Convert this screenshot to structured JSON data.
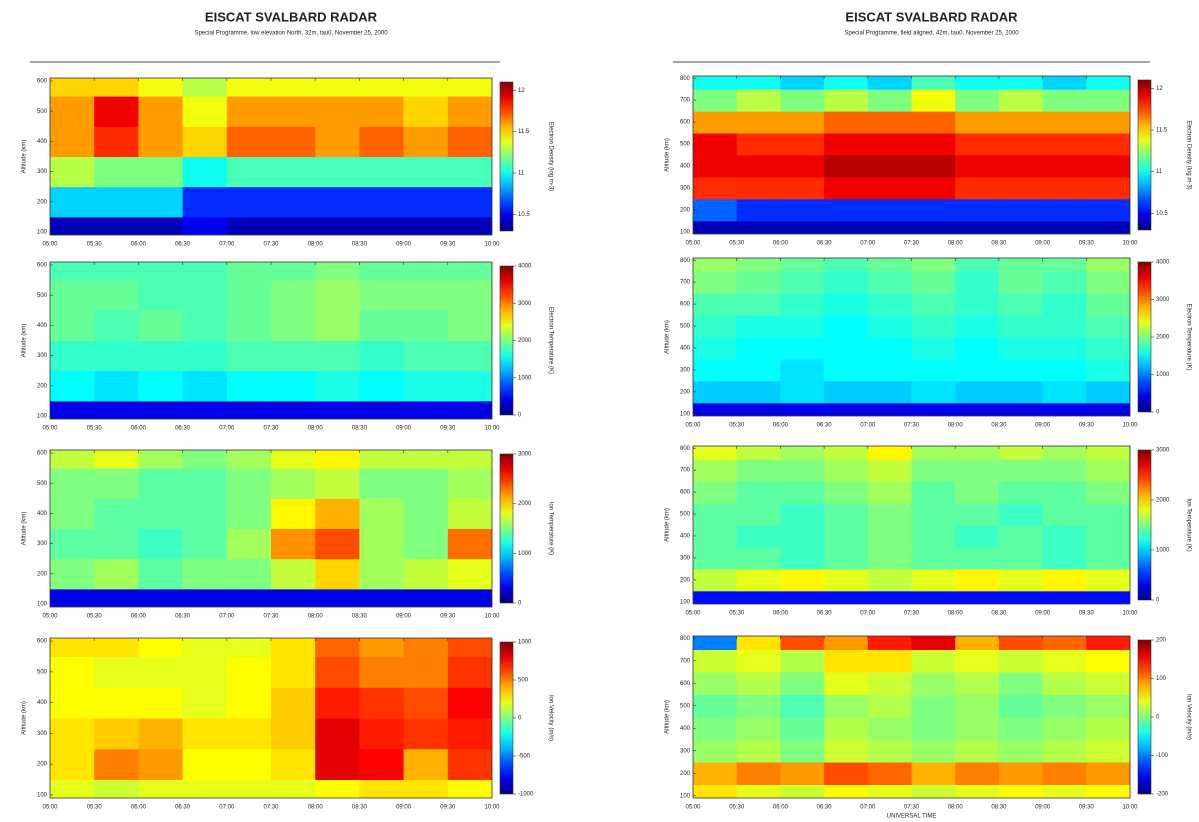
{
  "chart_data": [
    {
      "type": "heatmap",
      "title": "EISCAT SVALBARD RADAR",
      "subtitle": "Special Programme, low elevation North, 32m, tau0, November 25, 2000",
      "x": [
        "05:15",
        "05:45",
        "06:15",
        "06:45",
        "07:15",
        "07:45",
        "08:15",
        "08:45",
        "09:15",
        "09:45"
      ],
      "xlim": [
        "05:00",
        "10:00"
      ],
      "xticks": [
        "05:00",
        "05:30",
        "06:00",
        "06:30",
        "07:00",
        "07:30",
        "08:00",
        "08:30",
        "09:00",
        "09:30",
        "10:00"
      ],
      "y": [
        100,
        200,
        300,
        400,
        500,
        600
      ],
      "ylim": [
        90,
        610
      ],
      "yticks": [
        100,
        200,
        300,
        400,
        500,
        600
      ],
      "ylabel": "Altitude (km)",
      "values": [
        [
          10.4,
          10.4,
          10.4,
          10.5,
          10.4,
          10.4,
          10.4,
          10.4,
          10.4,
          10.4
        ],
        [
          10.9,
          10.9,
          10.9,
          10.6,
          10.6,
          10.6,
          10.6,
          10.6,
          10.6,
          10.6
        ],
        [
          11.3,
          11.2,
          11.2,
          11.0,
          11.1,
          11.1,
          11.1,
          11.1,
          11.1,
          11.1
        ],
        [
          11.6,
          11.8,
          11.6,
          11.5,
          11.7,
          11.7,
          11.6,
          11.7,
          11.6,
          11.7
        ],
        [
          11.6,
          11.9,
          11.6,
          11.4,
          11.6,
          11.6,
          11.6,
          11.6,
          11.5,
          11.6
        ],
        [
          11.5,
          11.5,
          11.4,
          11.3,
          11.4,
          11.4,
          11.4,
          11.4,
          11.4,
          11.4
        ]
      ],
      "clim": [
        10.3,
        12.1
      ],
      "cticks": [
        10.5,
        11,
        11.5,
        12
      ],
      "colorbar_label": "Electron Density (log m-3)"
    },
    {
      "type": "heatmap",
      "x": [
        "05:15",
        "05:45",
        "06:15",
        "06:45",
        "07:15",
        "07:45",
        "08:15",
        "08:45",
        "09:15",
        "09:45"
      ],
      "xlim": [
        "05:00",
        "10:00"
      ],
      "xticks": [
        "05:00",
        "05:30",
        "06:00",
        "06:30",
        "07:00",
        "07:30",
        "08:00",
        "08:30",
        "09:00",
        "09:30",
        "10:00"
      ],
      "y": [
        100,
        200,
        300,
        400,
        500,
        600
      ],
      "ylim": [
        90,
        610
      ],
      "yticks": [
        100,
        200,
        300,
        400,
        500,
        600
      ],
      "ylabel": "Altitude (km)",
      "values": [
        [
          400,
          400,
          400,
          400,
          400,
          400,
          400,
          400,
          400,
          400
        ],
        [
          1500,
          1400,
          1500,
          1400,
          1500,
          1500,
          1600,
          1500,
          1600,
          1600
        ],
        [
          1700,
          1700,
          1700,
          1700,
          1800,
          1800,
          1800,
          1700,
          1800,
          1800
        ],
        [
          1900,
          1800,
          1900,
          1800,
          1900,
          2000,
          2100,
          1900,
          1900,
          2000
        ],
        [
          1900,
          1900,
          1800,
          1800,
          1900,
          2000,
          2100,
          2000,
          2000,
          2000
        ],
        [
          1800,
          1800,
          1800,
          1800,
          1900,
          1900,
          2000,
          1900,
          1900,
          1900
        ]
      ],
      "clim": [
        0,
        4000
      ],
      "cticks": [
        0,
        1000,
        2000,
        3000,
        4000
      ],
      "colorbar_label": "Electron Temperature (K)"
    },
    {
      "type": "heatmap",
      "x": [
        "05:15",
        "05:45",
        "06:15",
        "06:45",
        "07:15",
        "07:45",
        "08:15",
        "08:45",
        "09:15",
        "09:45"
      ],
      "xlim": [
        "05:00",
        "10:00"
      ],
      "xticks": [
        "05:00",
        "05:30",
        "06:00",
        "06:30",
        "07:00",
        "07:30",
        "08:00",
        "08:30",
        "09:00",
        "09:30",
        "10:00"
      ],
      "y": [
        100,
        200,
        300,
        400,
        500,
        600
      ],
      "ylim": [
        90,
        610
      ],
      "yticks": [
        100,
        200,
        300,
        400,
        500,
        600
      ],
      "ylabel": "Altitude (km)",
      "values": [
        [
          300,
          300,
          300,
          300,
          300,
          300,
          300,
          300,
          300,
          300
        ],
        [
          1500,
          1600,
          1400,
          1500,
          1500,
          1700,
          2000,
          1600,
          1700,
          1800
        ],
        [
          1400,
          1400,
          1300,
          1400,
          1600,
          2200,
          2400,
          1600,
          1500,
          2300
        ],
        [
          1500,
          1400,
          1400,
          1400,
          1500,
          1900,
          2100,
          1600,
          1500,
          1700
        ],
        [
          1500,
          1500,
          1400,
          1400,
          1500,
          1600,
          1700,
          1500,
          1500,
          1600
        ],
        [
          1700,
          1800,
          1600,
          1500,
          1600,
          1800,
          1900,
          1700,
          1700,
          1700
        ]
      ],
      "clim": [
        0,
        3000
      ],
      "cticks": [
        0,
        1000,
        2000,
        3000
      ],
      "colorbar_label": "Ion Temperature (K)"
    },
    {
      "type": "heatmap",
      "x": [
        "05:15",
        "05:45",
        "06:15",
        "06:45",
        "07:15",
        "07:45",
        "08:15",
        "08:45",
        "09:15",
        "09:45"
      ],
      "xlim": [
        "05:00",
        "10:00"
      ],
      "xticks": [
        "05:00",
        "05:30",
        "06:00",
        "06:30",
        "07:00",
        "07:30",
        "08:00",
        "08:30",
        "09:00",
        "09:30",
        "10:00"
      ],
      "y": [
        100,
        200,
        300,
        400,
        500,
        600
      ],
      "ylim": [
        90,
        610
      ],
      "yticks": [
        100,
        200,
        300,
        400,
        500,
        600
      ],
      "ylabel": "Altitude (km)",
      "values": [
        [
          200,
          150,
          200,
          200,
          200,
          200,
          250,
          300,
          300,
          250
        ],
        [
          300,
          500,
          450,
          250,
          250,
          300,
          800,
          750,
          400,
          650
        ],
        [
          300,
          350,
          400,
          300,
          300,
          350,
          800,
          700,
          650,
          700
        ],
        [
          250,
          250,
          250,
          200,
          250,
          350,
          700,
          650,
          600,
          750
        ],
        [
          250,
          200,
          200,
          200,
          250,
          300,
          600,
          500,
          500,
          650
        ],
        [
          300,
          300,
          250,
          200,
          200,
          300,
          550,
          450,
          500,
          600
        ]
      ],
      "clim": [
        -1000,
        1000
      ],
      "cticks": [
        -1000,
        -500,
        0,
        500,
        1000
      ],
      "colorbar_label": "Ion Velocity (m/s)"
    },
    {
      "type": "heatmap",
      "title": "EISCAT SVALBARD RADAR",
      "subtitle": "Special Programme, field aligned, 42m, tau0, November 25, 2000",
      "x": [
        "05:15",
        "05:45",
        "06:15",
        "06:45",
        "07:15",
        "07:45",
        "08:15",
        "08:45",
        "09:15",
        "09:45"
      ],
      "xlim": [
        "05:00",
        "10:00"
      ],
      "xticks": [
        "05:00",
        "05:30",
        "06:00",
        "06:30",
        "07:00",
        "07:30",
        "08:00",
        "08:30",
        "09:00",
        "09:30",
        "10:00"
      ],
      "y": [
        100,
        200,
        300,
        400,
        500,
        600,
        700,
        800
      ],
      "ylim": [
        90,
        810
      ],
      "yticks": [
        100,
        200,
        300,
        400,
        500,
        600,
        700,
        800
      ],
      "ylabel": "Altitude (km)",
      "values": [
        [
          10.4,
          10.4,
          10.4,
          10.4,
          10.4,
          10.4,
          10.4,
          10.4,
          10.4,
          10.4
        ],
        [
          10.7,
          10.6,
          10.6,
          10.6,
          10.6,
          10.6,
          10.6,
          10.6,
          10.6,
          10.6
        ],
        [
          11.8,
          11.8,
          11.8,
          11.9,
          11.9,
          11.9,
          11.8,
          11.8,
          11.8,
          11.8
        ],
        [
          11.9,
          11.9,
          11.9,
          12.0,
          12.0,
          12.0,
          11.9,
          11.9,
          11.9,
          11.9
        ],
        [
          11.9,
          11.8,
          11.8,
          11.9,
          11.9,
          11.9,
          11.8,
          11.8,
          11.8,
          11.8
        ],
        [
          11.6,
          11.6,
          11.6,
          11.7,
          11.7,
          11.7,
          11.6,
          11.6,
          11.6,
          11.6
        ],
        [
          11.2,
          11.3,
          11.2,
          11.3,
          11.2,
          11.4,
          11.2,
          11.3,
          11.2,
          11.2
        ],
        [
          11.0,
          11.0,
          10.9,
          11.0,
          10.9,
          11.1,
          11.0,
          11.0,
          10.9,
          11.0
        ]
      ],
      "clim": [
        10.3,
        12.1
      ],
      "cticks": [
        10.5,
        11,
        11.5,
        12
      ],
      "colorbar_label": "Electron Density (log m-3)"
    },
    {
      "type": "heatmap",
      "x": [
        "05:15",
        "05:45",
        "06:15",
        "06:45",
        "07:15",
        "07:45",
        "08:15",
        "08:45",
        "09:15",
        "09:45"
      ],
      "xlim": [
        "05:00",
        "10:00"
      ],
      "xticks": [
        "05:00",
        "05:30",
        "06:00",
        "06:30",
        "07:00",
        "07:30",
        "08:00",
        "08:30",
        "09:00",
        "09:30",
        "10:00"
      ],
      "y": [
        100,
        200,
        300,
        400,
        500,
        600,
        700,
        800
      ],
      "ylim": [
        90,
        810
      ],
      "yticks": [
        100,
        200,
        300,
        400,
        500,
        600,
        700,
        800
      ],
      "ylabel": "Altitude (km)",
      "values": [
        [
          400,
          400,
          400,
          400,
          400,
          400,
          400,
          400,
          400,
          400
        ],
        [
          1300,
          1300,
          1400,
          1300,
          1300,
          1400,
          1300,
          1300,
          1400,
          1300
        ],
        [
          1500,
          1500,
          1400,
          1500,
          1500,
          1500,
          1500,
          1500,
          1500,
          1600
        ],
        [
          1600,
          1500,
          1500,
          1500,
          1500,
          1600,
          1500,
          1600,
          1600,
          1700
        ],
        [
          1700,
          1600,
          1600,
          1500,
          1600,
          1700,
          1600,
          1700,
          1700,
          1800
        ],
        [
          1800,
          1800,
          1700,
          1600,
          1700,
          1800,
          1700,
          1800,
          1700,
          1900
        ],
        [
          2000,
          1900,
          1800,
          1700,
          1800,
          1900,
          1700,
          1900,
          1800,
          2000
        ],
        [
          2100,
          2000,
          1900,
          1800,
          1900,
          2000,
          1800,
          1900,
          1900,
          2100
        ]
      ],
      "clim": [
        0,
        4000
      ],
      "cticks": [
        0,
        1000,
        2000,
        3000,
        4000
      ],
      "colorbar_label": "Electron Temperature (K)"
    },
    {
      "type": "heatmap",
      "x": [
        "05:15",
        "05:45",
        "06:15",
        "06:45",
        "07:15",
        "07:45",
        "08:15",
        "08:45",
        "09:15",
        "09:45"
      ],
      "xlim": [
        "05:00",
        "10:00"
      ],
      "xticks": [
        "05:00",
        "05:30",
        "06:00",
        "06:30",
        "07:00",
        "07:30",
        "08:00",
        "08:30",
        "09:00",
        "09:30",
        "10:00"
      ],
      "y": [
        100,
        200,
        300,
        400,
        500,
        600,
        700,
        800
      ],
      "ylim": [
        90,
        810
      ],
      "yticks": [
        100,
        200,
        300,
        400,
        500,
        600,
        700,
        800
      ],
      "ylabel": "Altitude (km)",
      "values": [
        [
          400,
          400,
          400,
          400,
          400,
          400,
          400,
          400,
          400,
          400
        ],
        [
          1700,
          1800,
          1900,
          1800,
          1700,
          1800,
          1900,
          1800,
          1900,
          1800
        ],
        [
          1400,
          1400,
          1300,
          1400,
          1500,
          1400,
          1400,
          1400,
          1300,
          1400
        ],
        [
          1400,
          1300,
          1300,
          1400,
          1500,
          1400,
          1300,
          1400,
          1300,
          1400
        ],
        [
          1400,
          1400,
          1300,
          1400,
          1500,
          1400,
          1400,
          1300,
          1400,
          1400
        ],
        [
          1500,
          1400,
          1400,
          1500,
          1600,
          1400,
          1500,
          1400,
          1400,
          1500
        ],
        [
          1600,
          1500,
          1500,
          1600,
          1700,
          1500,
          1500,
          1500,
          1500,
          1600
        ],
        [
          1800,
          1700,
          1600,
          1700,
          1900,
          1600,
          1600,
          1700,
          1600,
          1700
        ]
      ],
      "clim": [
        0,
        3000
      ],
      "cticks": [
        0,
        1000,
        2000,
        3000
      ],
      "colorbar_label": "Ion Temperature (K)"
    },
    {
      "type": "heatmap",
      "x": [
        "05:15",
        "05:45",
        "06:15",
        "06:45",
        "07:15",
        "07:45",
        "08:15",
        "08:45",
        "09:15",
        "09:45"
      ],
      "xlim": [
        "05:00",
        "10:00"
      ],
      "xticks": [
        "05:00",
        "05:30",
        "06:00",
        "06:30",
        "07:00",
        "07:30",
        "08:00",
        "08:30",
        "09:00",
        "09:30",
        "10:00"
      ],
      "y": [
        100,
        200,
        300,
        400,
        500,
        600,
        700,
        800
      ],
      "ylim": [
        90,
        810
      ],
      "yticks": [
        100,
        200,
        300,
        400,
        500,
        600,
        700,
        800
      ],
      "ylabel": "Altitude (km)",
      "values": [
        [
          60,
          40,
          30,
          50,
          40,
          30,
          40,
          50,
          40,
          50
        ],
        [
          80,
          100,
          90,
          120,
          110,
          80,
          100,
          90,
          100,
          90
        ],
        [
          10,
          20,
          0,
          30,
          20,
          10,
          20,
          10,
          20,
          30
        ],
        [
          0,
          10,
          -10,
          20,
          10,
          0,
          10,
          0,
          10,
          20
        ],
        [
          -10,
          0,
          -20,
          10,
          20,
          0,
          10,
          -10,
          0,
          10
        ],
        [
          10,
          20,
          0,
          40,
          30,
          10,
          20,
          0,
          20,
          30
        ],
        [
          30,
          40,
          20,
          60,
          60,
          30,
          40,
          30,
          40,
          50
        ],
        [
          -100,
          60,
          120,
          90,
          140,
          160,
          80,
          120,
          110,
          140
        ]
      ],
      "clim": [
        -200,
        200
      ],
      "cticks": [
        -200,
        -100,
        0,
        100,
        200
      ],
      "colorbar_label": "Ion Velocity (m/s)",
      "xlabel": "UNIVERSAL TIME"
    }
  ]
}
